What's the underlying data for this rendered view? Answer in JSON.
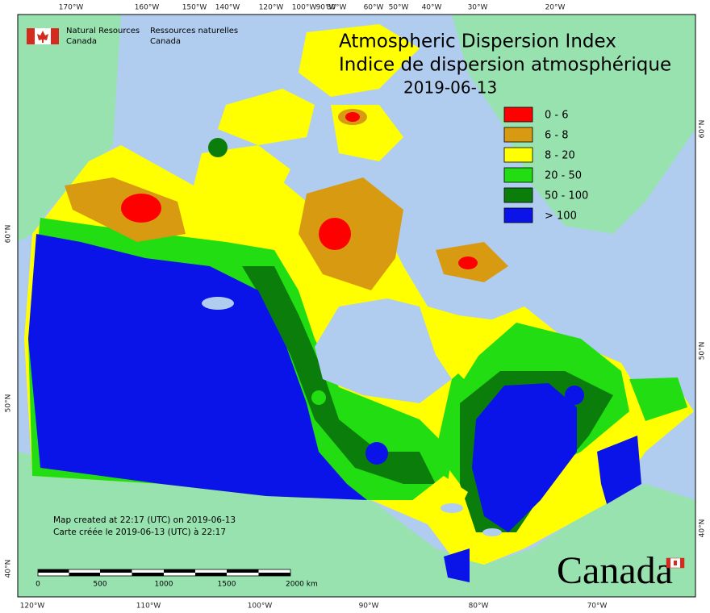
{
  "header": {
    "agency_en": [
      "Natural Resources",
      "Canada"
    ],
    "agency_fr": [
      "Ressources naturelles",
      "Canada"
    ]
  },
  "title": {
    "line1": "Atmospheric Dispersion Index",
    "line2": "Indice de dispersion atmosphérique",
    "date": "2019-06-13"
  },
  "legend": [
    {
      "label": "0 - 6",
      "color": "#ff0000"
    },
    {
      "label": "6 - 8",
      "color": "#d89a10"
    },
    {
      "label": "8 - 20",
      "color": "#ffff00"
    },
    {
      "label": "20 - 50",
      "color": "#22dd11"
    },
    {
      "label": "50 - 100",
      "color": "#0a7d0a"
    },
    {
      "label": "> 100",
      "color": "#0a14e8"
    }
  ],
  "notes": [
    "Map created at 22:17 (UTC) on 2019-06-13",
    "Carte créée le 2019-06-13 (UTC) à 22:17"
  ],
  "scale_bar": {
    "labels": [
      "0",
      "500",
      "1000",
      "1500",
      "2000 km"
    ]
  },
  "graticule": {
    "top": [
      "170°W",
      "160°W",
      "150°W",
      "140°W",
      "120°W",
      "100°W",
      "90°W",
      "80°W",
      "60°W",
      "50°W",
      "40°W",
      "30°W",
      "20°W"
    ],
    "bottom": [
      "120°W",
      "110°W",
      "100°W",
      "90°W",
      "80°W",
      "70°W"
    ],
    "left": [
      "60°N",
      "50°N",
      "40°N"
    ],
    "right": [
      "60°N",
      "50°N",
      "40°N"
    ]
  },
  "wordmark": "Canada"
}
